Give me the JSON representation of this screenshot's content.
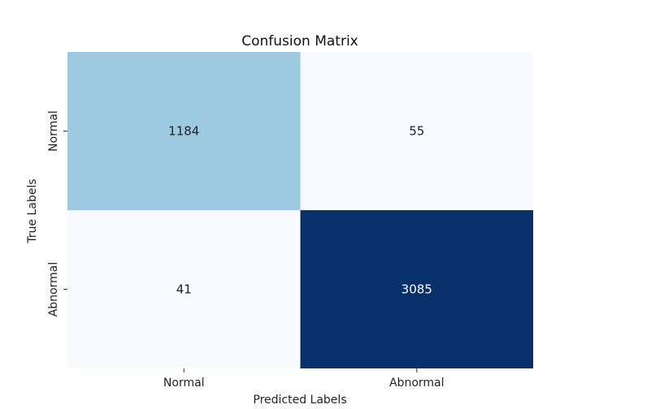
{
  "chart_data": {
    "type": "heatmap",
    "title": "Confusion Matrix",
    "xlabel": "Predicted Labels",
    "ylabel": "True Labels",
    "x_categories": [
      "Normal",
      "Abnormal"
    ],
    "y_categories": [
      "Normal",
      "Abnormal"
    ],
    "values": [
      [
        1184,
        55
      ],
      [
        41,
        3085
      ]
    ],
    "colormap": "Blues",
    "color_range": [
      41,
      3085
    ],
    "colorbar": false,
    "grid": false
  }
}
